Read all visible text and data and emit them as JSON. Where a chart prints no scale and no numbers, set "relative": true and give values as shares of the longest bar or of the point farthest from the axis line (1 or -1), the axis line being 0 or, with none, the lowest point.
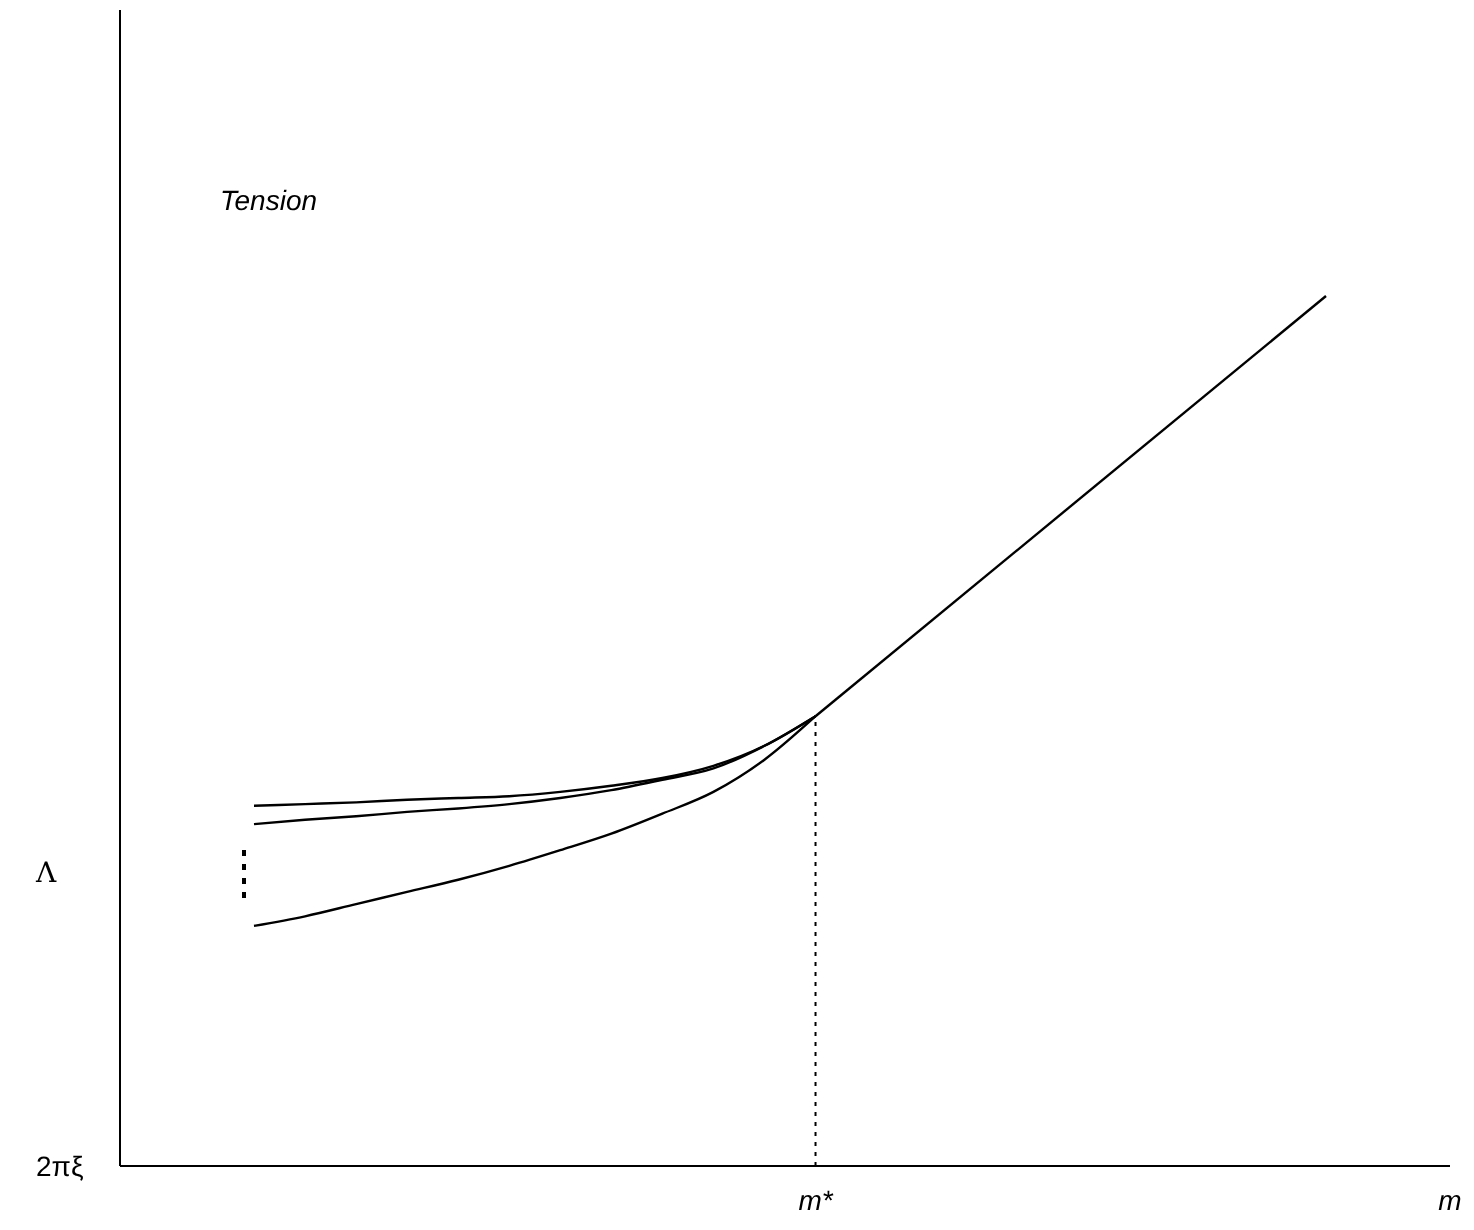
{
  "chart_data": {
    "type": "line",
    "relative": true,
    "ylabel": "Tension",
    "xlabel": "m",
    "categories": [
      null,
      null,
      null,
      null,
      null,
      null,
      null,
      null,
      null,
      null,
      null,
      null,
      null,
      null,
      null,
      null,
      null,
      null,
      null,
      null,
      null,
      null
    ],
    "series": [
      {
        "color": "#000000",
        "values": [
          0.414,
          0.416,
          0.418,
          0.421,
          0.423,
          0.425,
          0.43,
          0.437,
          0.446,
          0.46,
          0.483,
          0.517,
          null,
          null,
          null,
          null,
          null,
          null,
          null,
          null,
          null,
          null
        ]
      },
      {
        "color": "#000000",
        "values": [
          0.393,
          0.398,
          0.402,
          0.407,
          0.411,
          0.416,
          0.423,
          0.432,
          0.444,
          0.457,
          0.483,
          0.517,
          null,
          null,
          null,
          null,
          null,
          null,
          null,
          null,
          null,
          null
        ]
      },
      {
        "color": "#000000",
        "values": [
          0.276,
          0.287,
          0.301,
          0.315,
          0.329,
          0.345,
          0.363,
          0.382,
          0.405,
          0.43,
          0.467,
          0.517,
          null,
          null,
          null,
          null,
          null,
          null,
          null,
          null,
          null,
          null
        ]
      },
      {
        "color": "#000000",
        "values": [
          null,
          null,
          null,
          null,
          null,
          null,
          null,
          null,
          null,
          null,
          null,
          0.517,
          null,
          null,
          null,
          null,
          null,
          null,
          null,
          null,
          null,
          1.0
        ]
      }
    ],
    "annotations": [
      "Λ",
      "2πξ",
      "m*"
    ],
    "marker": "none",
    "line_style": "solid"
  }
}
